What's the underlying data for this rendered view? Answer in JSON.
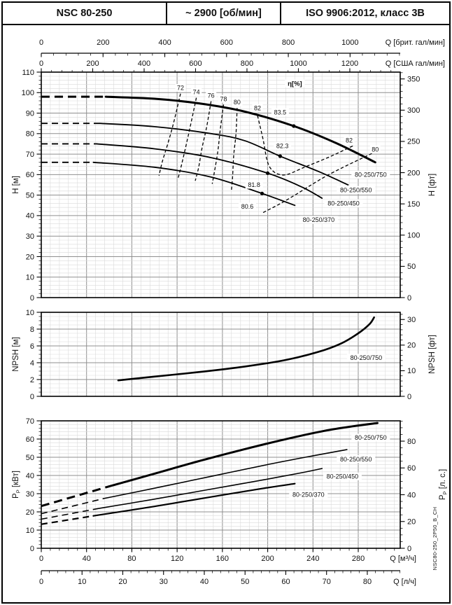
{
  "header": {
    "model": "NSC 80-250",
    "speed": "~ 2900 [об/мин]",
    "standard": "ISO 9906:2012, класс 3В"
  },
  "side_code": "NSC80-250_2P50_B_CH",
  "chart_data": {
    "type": "line",
    "x_axes": {
      "imp_gpm": {
        "label": "Q [брит. гал/мин]",
        "ticks": [
          0,
          200,
          400,
          600,
          800,
          1000
        ],
        "minor_step": 40
      },
      "us_gpm": {
        "label": "Q [США гал/мин]",
        "ticks": [
          0,
          200,
          400,
          600,
          800,
          1000,
          1200
        ],
        "minor_step": 40
      },
      "m3h": {
        "label": "Q [м³/ч]",
        "ticks": [
          0,
          40,
          80,
          120,
          160,
          200,
          240,
          280
        ],
        "minor_step": 8
      },
      "lps": {
        "label": "Q [л/ч]",
        "ticks": [
          0,
          10,
          20,
          30,
          40,
          50,
          60,
          70,
          80
        ],
        "minor_step": 2
      }
    },
    "head": {
      "eta": {
        "text": "η[%]",
        "q": 224,
        "v": 104.5
      },
      "y_left": {
        "label": "H [м]",
        "ticks": [
          0,
          10,
          20,
          30,
          40,
          50,
          60,
          70,
          80,
          90,
          100,
          110
        ]
      },
      "y_right": {
        "label": "H [фт]",
        "ticks": [
          0,
          50,
          100,
          150,
          200,
          250,
          300,
          350
        ],
        "minor_step": 10
      },
      "ylim": [
        0,
        110
      ],
      "xlim_m3h": [
        0,
        317
      ],
      "curves": [
        {
          "name": "80-250/750",
          "width": 3,
          "dash_until": 57,
          "points": [
            [
              0,
              98
            ],
            [
              30,
              98
            ],
            [
              57,
              98
            ],
            [
              100,
              97
            ],
            [
              140,
              94.7
            ],
            [
              180,
              90.7
            ],
            [
              223,
              83.7
            ],
            [
              260,
              75.5
            ],
            [
              295,
              66
            ]
          ],
          "bep": [
            223,
            83.7
          ],
          "bep_label": "83.5",
          "bep_label_pos": [
            211,
            90.5
          ]
        },
        {
          "name": "80-250/550",
          "width": 1.8,
          "dash_until": 52,
          "points": [
            [
              0,
              85
            ],
            [
              52,
              85
            ],
            [
              100,
              83.4
            ],
            [
              150,
              80
            ],
            [
              180,
              76.5
            ],
            [
              211,
              69
            ],
            [
              245,
              61.5
            ],
            [
              271,
              55
            ]
          ],
          "bep": [
            211,
            69
          ],
          "bep_label": "82.3",
          "bep_label_pos": [
            213,
            74
          ]
        },
        {
          "name": "80-250/450",
          "width": 1.8,
          "dash_until": 49,
          "points": [
            [
              0,
              75
            ],
            [
              49,
              75
            ],
            [
              100,
              72.6
            ],
            [
              150,
              68.3
            ],
            [
              200,
              60.7
            ],
            [
              230,
              54
            ],
            [
              248,
              48.5
            ]
          ],
          "bep": [
            200,
            60.7
          ],
          "bep_label": "81.8",
          "bep_label_pos": [
            188,
            55
          ]
        },
        {
          "name": "80-250/370",
          "width": 1.8,
          "dash_until": 46,
          "points": [
            [
              0,
              66
            ],
            [
              46,
              66
            ],
            [
              100,
              63.6
            ],
            [
              150,
              58.8
            ],
            [
              195,
              50.8
            ],
            [
              224,
              45
            ]
          ],
          "bep": [
            195,
            50.8
          ],
          "bep_label": "80.6",
          "bep_label_pos": [
            182,
            44.5
          ]
        }
      ],
      "eff_contours": [
        {
          "label": "72",
          "points": [
            [
              123,
              99.5
            ],
            [
              117,
              85.5
            ],
            [
              112,
              75.5
            ],
            [
              107,
              66.5
            ],
            [
              104,
              59.5
            ]
          ]
        },
        {
          "label": "74",
          "points": [
            [
              137,
              97.5
            ],
            [
              132,
              84.5
            ],
            [
              128,
              74.5
            ],
            [
              124,
              65
            ],
            [
              121,
              58.5
            ]
          ]
        },
        {
          "label": "76",
          "points": [
            [
              150,
              95.8
            ],
            [
              146,
              83
            ],
            [
              142,
              73
            ],
            [
              139,
              63.5
            ],
            [
              136,
              57
            ]
          ]
        },
        {
          "label": "78",
          "points": [
            [
              161,
              94.2
            ],
            [
              158,
              81.5
            ],
            [
              156,
              71.5
            ],
            [
              153,
              61.5
            ],
            [
              151,
              55.5
            ]
          ]
        },
        {
          "label": "80",
          "points": [
            [
              173,
              92.5
            ],
            [
              172,
              80
            ],
            [
              170,
              69.5
            ],
            [
              169,
              59
            ],
            [
              168,
              52.5
            ]
          ]
        },
        {
          "label": "82",
          "points": [
            [
              191,
              88.8
            ],
            [
              196,
              77
            ],
            [
              199,
              68
            ],
            [
              202,
              63.5
            ],
            [
              207,
              60.8
            ],
            [
              214,
              59.8
            ],
            [
              221,
              60.8
            ],
            [
              232,
              63.5
            ],
            [
              254,
              68.5
            ],
            [
              276,
              74.2
            ]
          ]
        },
        {
          "label": "80",
          "points": [
            [
              196,
              41.5
            ],
            [
              210,
              45.5
            ],
            [
              224,
              50
            ],
            [
              254,
              60
            ],
            [
              292,
              70.3
            ]
          ]
        }
      ],
      "eff_labels": [
        {
          "text": "72",
          "q": 123,
          "v": 102.3
        },
        {
          "text": "74",
          "q": 137,
          "v": 100.3
        },
        {
          "text": "76",
          "q": 150,
          "v": 98.6
        },
        {
          "text": "78",
          "q": 161,
          "v": 97
        },
        {
          "text": "80",
          "q": 173,
          "v": 95.3
        },
        {
          "text": "82",
          "q": 191,
          "v": 92.5
        },
        {
          "text": "82",
          "q": 272,
          "v": 76.8
        },
        {
          "text": "80",
          "q": 295,
          "v": 72.3
        }
      ],
      "curve_labels": [
        {
          "text": "80-250/750",
          "q": 291,
          "v": 60
        },
        {
          "text": "80-250/550",
          "q": 278,
          "v": 52.5
        },
        {
          "text": "80-250/450",
          "q": 267,
          "v": 46
        },
        {
          "text": "80-250/370",
          "q": 245,
          "v": 38
        }
      ]
    },
    "npsh": {
      "y_left": {
        "label": "NPSH [м]",
        "ticks": [
          0,
          2,
          4,
          6,
          8,
          10
        ]
      },
      "y_right": {
        "label": "NPSH [фт]",
        "ticks": [
          0,
          10,
          20,
          30
        ],
        "minor_step": 2
      },
      "ylim": [
        0,
        10
      ],
      "curves": [
        {
          "name": "80-250/750",
          "width": 2.6,
          "points": [
            [
              68,
              1.9
            ],
            [
              100,
              2.35
            ],
            [
              140,
              2.9
            ],
            [
              180,
              3.55
            ],
            [
              215,
              4.3
            ],
            [
              245,
              5.3
            ],
            [
              265,
              6.3
            ],
            [
              280,
              7.5
            ],
            [
              290,
              8.6
            ],
            [
              294,
              9.4
            ]
          ]
        }
      ],
      "curve_labels": [
        {
          "text": "80-250/750",
          "q": 287,
          "v": 4.6
        }
      ]
    },
    "power": {
      "y_left": {
        "label_main": "P",
        "label_sub": "P",
        "label_unit": "[кВт]",
        "ticks": [
          0,
          10,
          20,
          30,
          40,
          50,
          60,
          70
        ]
      },
      "y_right": {
        "label_main": "P",
        "label_sub": "P",
        "label_unit": "[л. с.]",
        "ticks": [
          0,
          20,
          40,
          60,
          80
        ],
        "minor_step": 5
      },
      "ylim": [
        0,
        70
      ],
      "curves": [
        {
          "name": "80-250/750",
          "width": 3,
          "dash_until": 60,
          "points": [
            [
              0,
              23.2
            ],
            [
              30,
              28.6
            ],
            [
              60,
              34
            ],
            [
              100,
              41
            ],
            [
              140,
              48
            ],
            [
              180,
              54.5
            ],
            [
              220,
              60.5
            ],
            [
              250,
              64.5
            ],
            [
              275,
              67
            ],
            [
              297,
              68.8
            ]
          ]
        },
        {
          "name": "80-250/550",
          "width": 1.6,
          "dash_until": 55,
          "points": [
            [
              0,
              19
            ],
            [
              28,
              23.2
            ],
            [
              55,
              27.3
            ],
            [
              100,
              33
            ],
            [
              150,
              39.5
            ],
            [
              200,
              46
            ],
            [
              240,
              50.8
            ],
            [
              270,
              54.2
            ]
          ]
        },
        {
          "name": "80-250/450",
          "width": 1.6,
          "dash_until": 50,
          "points": [
            [
              0,
              16
            ],
            [
              25,
              18.9
            ],
            [
              50,
              21.8
            ],
            [
              100,
              27
            ],
            [
              150,
              32.5
            ],
            [
              200,
              38
            ],
            [
              230,
              41.5
            ],
            [
              248,
              43.8
            ]
          ]
        },
        {
          "name": "80-250/370",
          "width": 2.2,
          "dash_until": 46,
          "points": [
            [
              0,
              13.2
            ],
            [
              23,
              15.5
            ],
            [
              46,
              17.8
            ],
            [
              100,
              23
            ],
            [
              150,
              28.2
            ],
            [
              195,
              32.8
            ],
            [
              224,
              35.5
            ]
          ]
        }
      ],
      "curve_labels": [
        {
          "text": "80-250/750",
          "q": 291,
          "v": 60.8
        },
        {
          "text": "80-250/550",
          "q": 278,
          "v": 49
        },
        {
          "text": "80-250/450",
          "q": 266,
          "v": 39.5
        },
        {
          "text": "80-250/370",
          "q": 236,
          "v": 29.5
        }
      ]
    }
  }
}
